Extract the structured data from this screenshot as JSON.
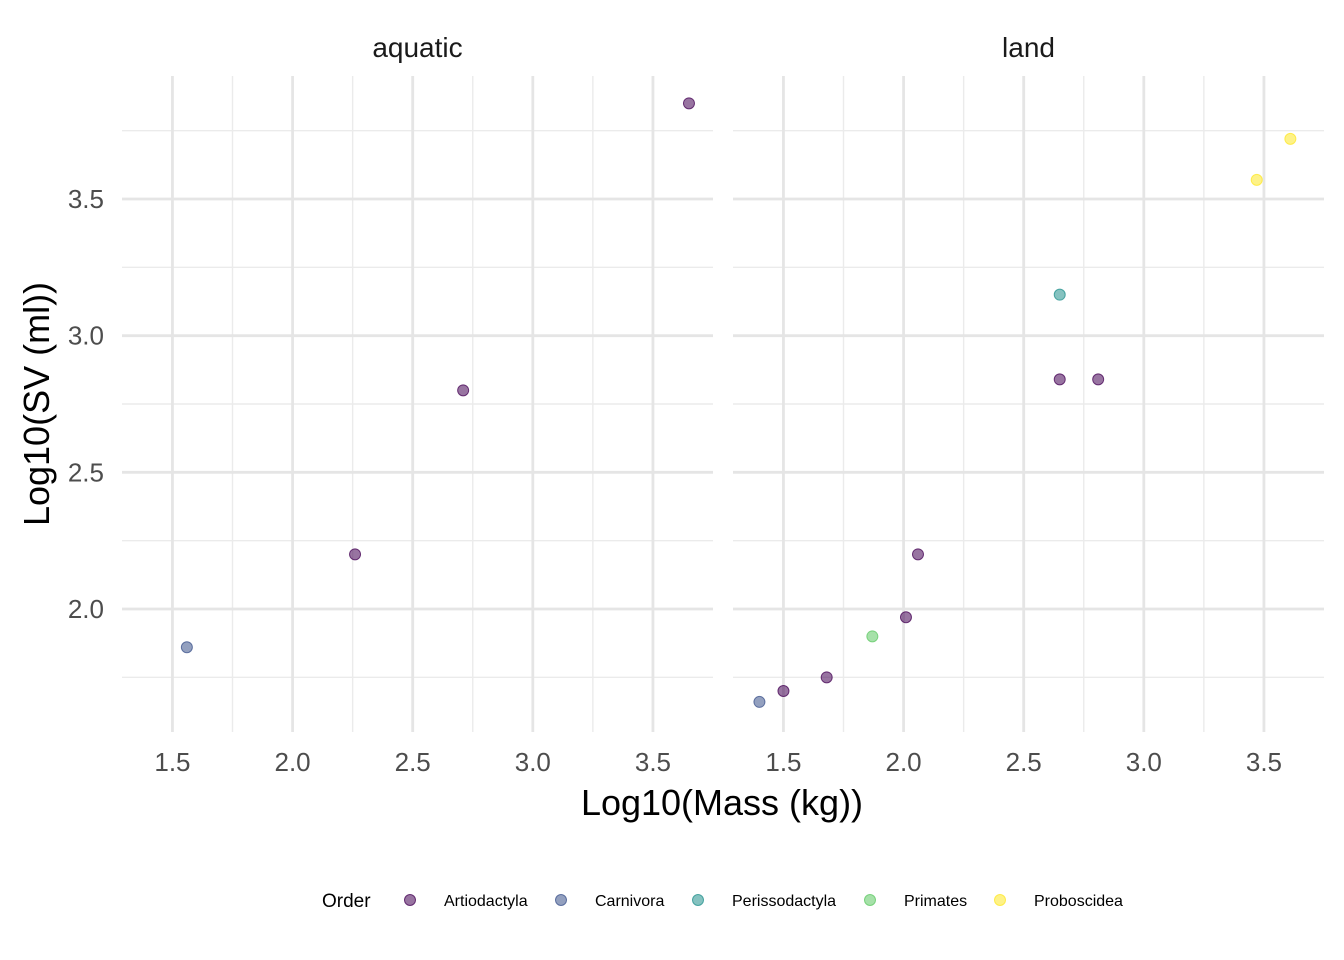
{
  "chart_data": {
    "type": "scatter",
    "xlabel": "Log10(Mass (kg))",
    "ylabel": "Log10(SV (ml))",
    "xlim": [
      1.29,
      3.75
    ],
    "ylim": [
      1.55,
      3.95
    ],
    "x_ticks": [
      "1.5",
      "2.0",
      "2.5",
      "3.0",
      "3.5"
    ],
    "y_ticks": [
      "2.0",
      "2.5",
      "3.0",
      "3.5"
    ],
    "grid": true,
    "legend_title": "Order",
    "legend_position": "bottom",
    "facets": [
      "aquatic",
      "land"
    ],
    "series": [
      {
        "name": "Artiodactyla",
        "color": "#440154",
        "points": [
          {
            "facet": "aquatic",
            "x": 2.26,
            "y": 2.2
          },
          {
            "facet": "aquatic",
            "x": 2.71,
            "y": 2.8
          },
          {
            "facet": "aquatic",
            "x": 3.65,
            "y": 3.85
          },
          {
            "facet": "land",
            "x": 1.5,
            "y": 1.7
          },
          {
            "facet": "land",
            "x": 1.68,
            "y": 1.75
          },
          {
            "facet": "land",
            "x": 2.01,
            "y": 1.97
          },
          {
            "facet": "land",
            "x": 2.06,
            "y": 2.2
          },
          {
            "facet": "land",
            "x": 2.65,
            "y": 2.84
          },
          {
            "facet": "land",
            "x": 2.81,
            "y": 2.84
          }
        ]
      },
      {
        "name": "Carnivora",
        "color": "#3B528B",
        "points": [
          {
            "facet": "aquatic",
            "x": 1.56,
            "y": 1.86
          },
          {
            "facet": "land",
            "x": 1.4,
            "y": 1.66
          }
        ]
      },
      {
        "name": "Perissodactyla",
        "color": "#21908C",
        "points": [
          {
            "facet": "land",
            "x": 2.65,
            "y": 3.15
          }
        ]
      },
      {
        "name": "Primates",
        "color": "#5DC863",
        "points": [
          {
            "facet": "land",
            "x": 1.87,
            "y": 1.9
          }
        ]
      },
      {
        "name": "Proboscidea",
        "color": "#FDE725",
        "points": [
          {
            "facet": "land",
            "x": 3.47,
            "y": 3.57
          },
          {
            "facet": "land",
            "x": 3.61,
            "y": 3.72
          }
        ]
      }
    ]
  }
}
